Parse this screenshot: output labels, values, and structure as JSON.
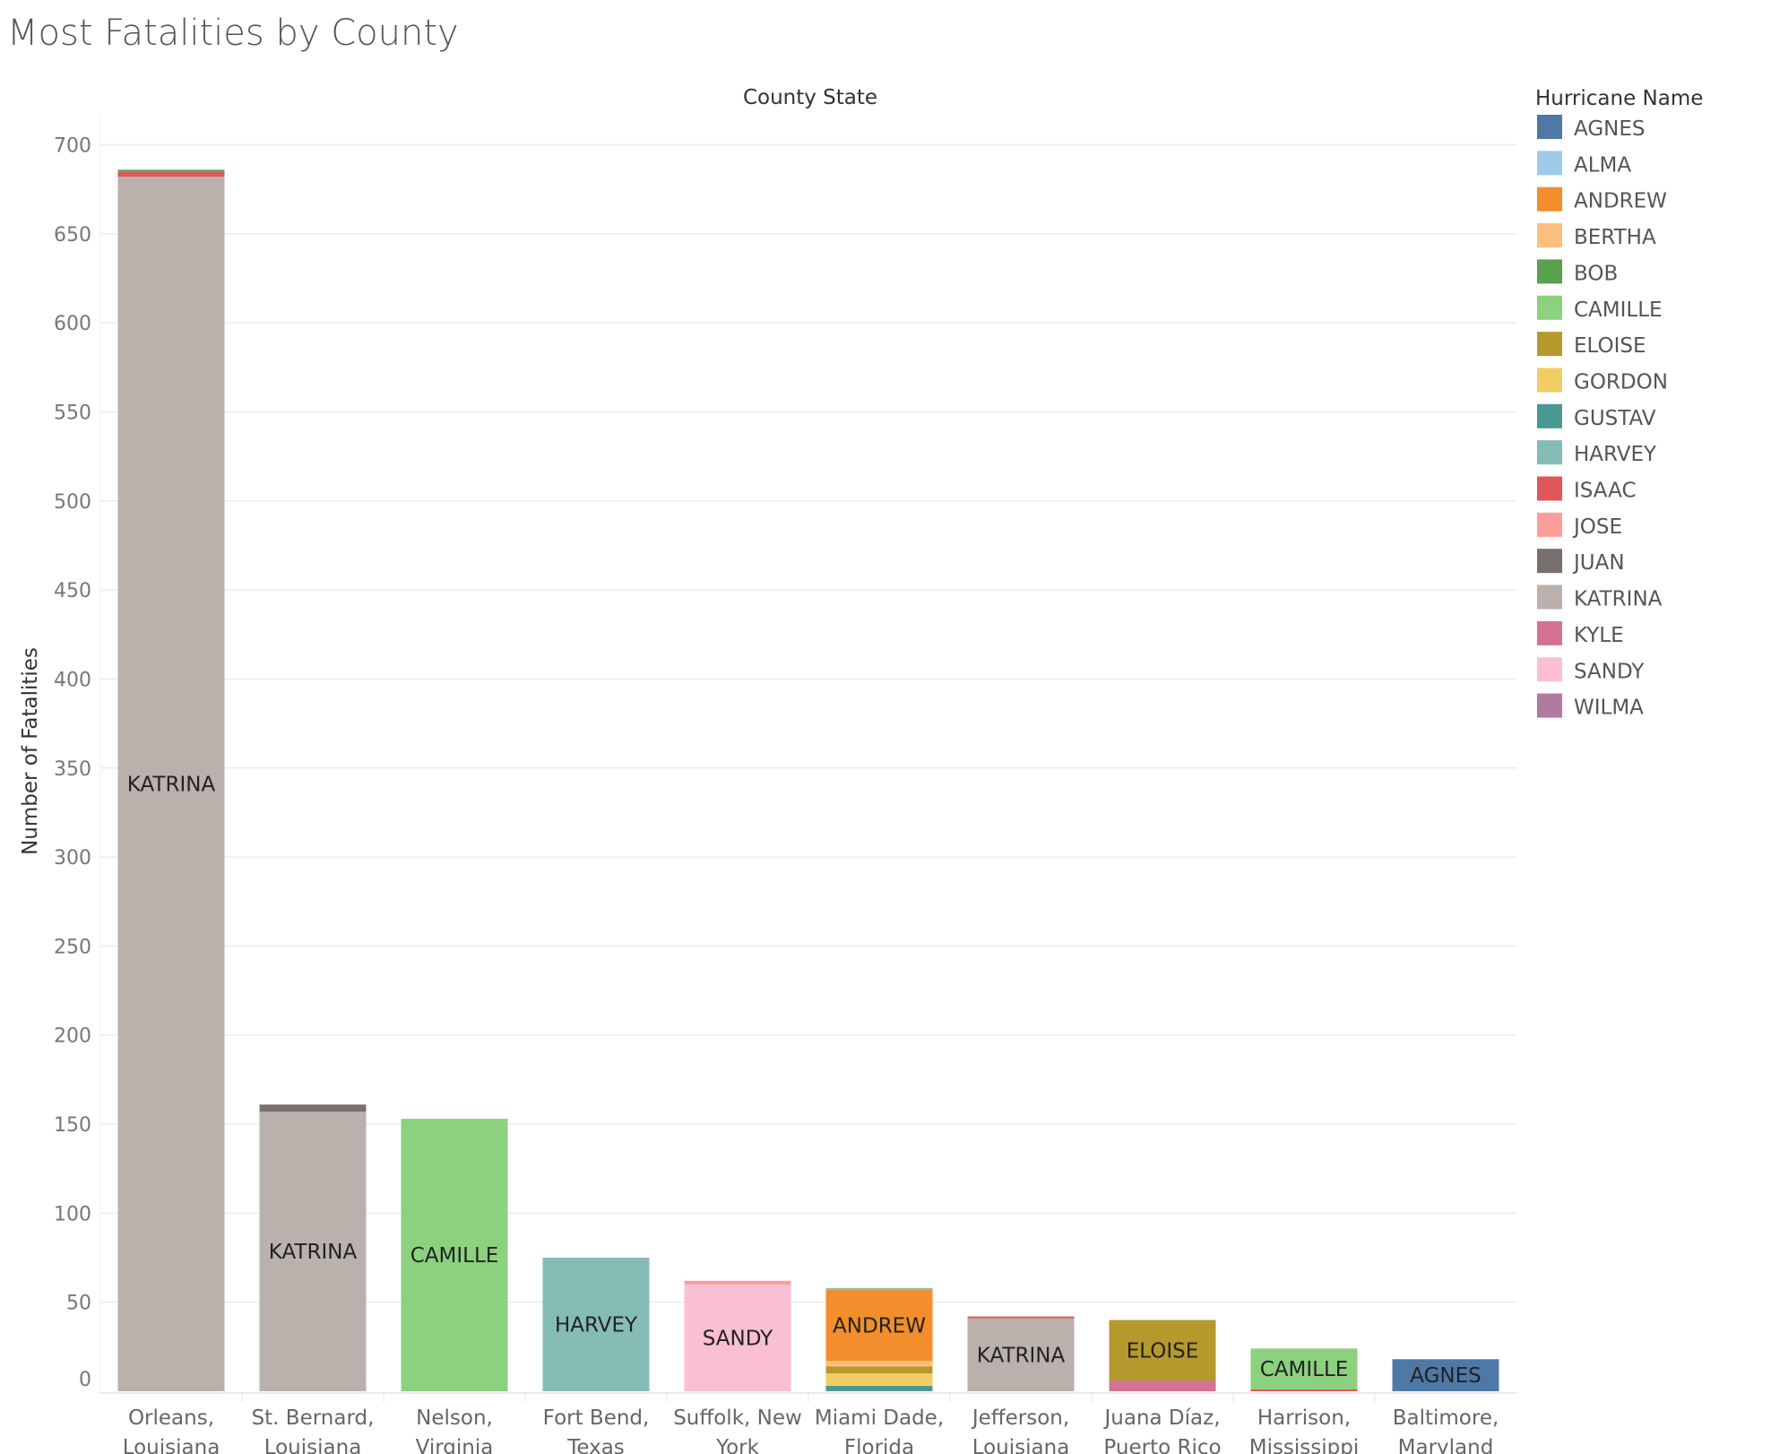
{
  "chart_data": {
    "type": "bar",
    "stacked": true,
    "title": "Most Fatalities by County",
    "xlabel": "County State",
    "ylabel": "Number of Fatalities",
    "ylim": [
      0,
      710
    ],
    "yticks": [
      0,
      50,
      100,
      150,
      200,
      250,
      300,
      350,
      400,
      450,
      500,
      550,
      600,
      650,
      700
    ],
    "grid": true,
    "legend": {
      "title": "Hurricane Name",
      "position": "right",
      "items": [
        {
          "name": "AGNES",
          "color": "#4e79a7"
        },
        {
          "name": "ALMA",
          "color": "#a0cbe8"
        },
        {
          "name": "ANDREW",
          "color": "#f28e2b"
        },
        {
          "name": "BERTHA",
          "color": "#ffbe7d"
        },
        {
          "name": "BOB",
          "color": "#59a14f"
        },
        {
          "name": "CAMILLE",
          "color": "#8cd17d"
        },
        {
          "name": "ELOISE",
          "color": "#b6992d"
        },
        {
          "name": "GORDON",
          "color": "#f1ce63"
        },
        {
          "name": "GUSTAV",
          "color": "#499894"
        },
        {
          "name": "HARVEY",
          "color": "#86bcb6"
        },
        {
          "name": "ISAAC",
          "color": "#e15759"
        },
        {
          "name": "JOSE",
          "color": "#ff9d9a"
        },
        {
          "name": "JUAN",
          "color": "#79706e"
        },
        {
          "name": "KATRINA",
          "color": "#bab0ac"
        },
        {
          "name": "KYLE",
          "color": "#d37295"
        },
        {
          "name": "SANDY",
          "color": "#fabfd2"
        },
        {
          "name": "WILMA",
          "color": "#b07aa1"
        }
      ]
    },
    "categories": [
      [
        "Orleans,",
        "Louisiana"
      ],
      [
        "St. Bernard,",
        "Louisiana"
      ],
      [
        "Nelson,",
        "Virginia"
      ],
      [
        "Fort Bend,",
        "Texas"
      ],
      [
        "Suffolk, New",
        "York"
      ],
      [
        "Miami Dade,",
        "Florida"
      ],
      [
        "Jefferson,",
        "Louisiana"
      ],
      [
        "Juana Díaz,",
        "Puerto Rico"
      ],
      [
        "Harrison,",
        "Mississippi"
      ],
      [
        "Baltimore,",
        "Maryland"
      ]
    ],
    "bars": [
      {
        "segments": [
          {
            "name": "KATRINA",
            "value": 682,
            "label": "KATRINA"
          },
          {
            "name": "ISAAC",
            "value": 3
          },
          {
            "name": "BOB",
            "value": 1
          }
        ]
      },
      {
        "segments": [
          {
            "name": "KATRINA",
            "value": 157,
            "label": "KATRINA"
          },
          {
            "name": "JUAN",
            "value": 4
          }
        ]
      },
      {
        "segments": [
          {
            "name": "CAMILLE",
            "value": 153,
            "label": "CAMILLE"
          }
        ]
      },
      {
        "segments": [
          {
            "name": "HARVEY",
            "value": 75,
            "label": "HARVEY"
          }
        ]
      },
      {
        "segments": [
          {
            "name": "SANDY",
            "value": 60,
            "label": "SANDY"
          },
          {
            "name": "JOSE",
            "value": 2
          }
        ]
      },
      {
        "segments": [
          {
            "name": "GUSTAV",
            "value": 3
          },
          {
            "name": "GORDON",
            "value": 7
          },
          {
            "name": "ELOISE",
            "value": 4
          },
          {
            "name": "BERTHA",
            "value": 3
          },
          {
            "name": "ANDREW",
            "value": 40,
            "label": "ANDREW"
          },
          {
            "name": "HARVEY",
            "value": 1
          }
        ]
      },
      {
        "segments": [
          {
            "name": "KATRINA",
            "value": 41,
            "label": "KATRINA"
          },
          {
            "name": "ISAAC",
            "value": 1
          }
        ]
      },
      {
        "segments": [
          {
            "name": "KYLE",
            "value": 6
          },
          {
            "name": "ELOISE",
            "value": 34,
            "label": "ELOISE"
          }
        ]
      },
      {
        "segments": [
          {
            "name": "ISAAC",
            "value": 1
          },
          {
            "name": "CAMILLE",
            "value": 23,
            "label": "CAMILLE"
          }
        ]
      },
      {
        "segments": [
          {
            "name": "AGNES",
            "value": 18,
            "label": "AGNES"
          }
        ]
      }
    ]
  }
}
